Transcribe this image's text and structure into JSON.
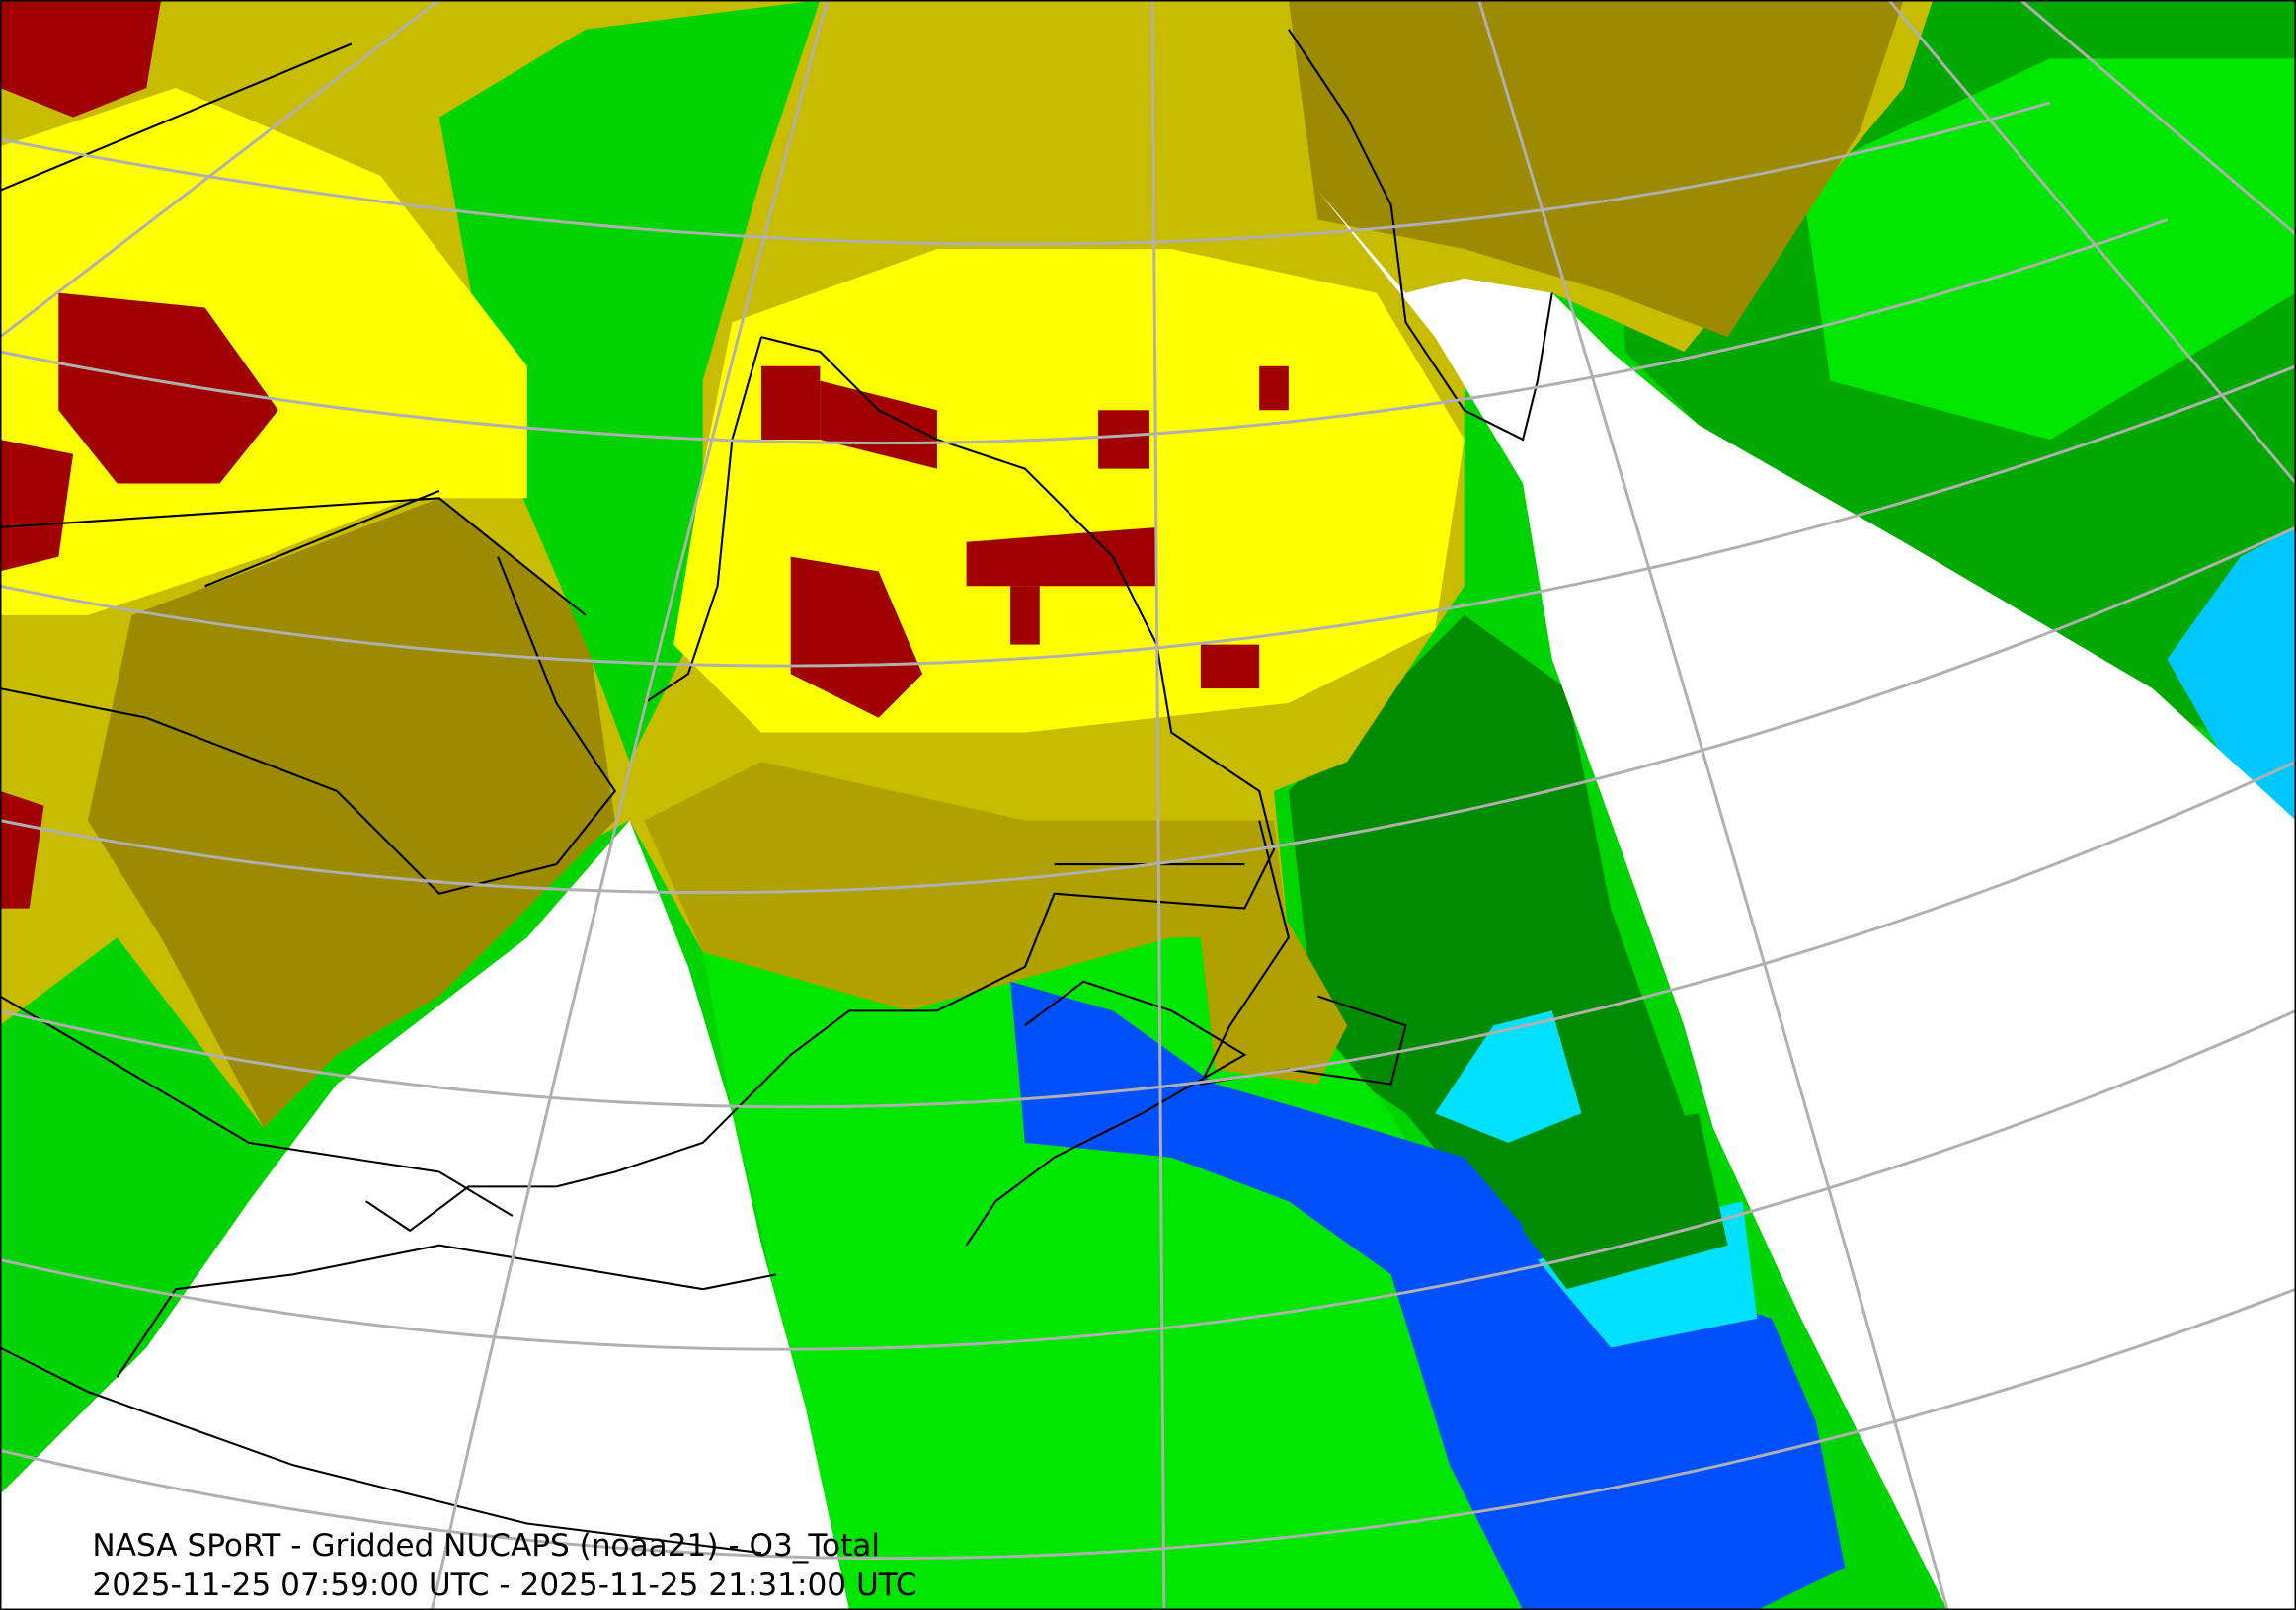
{
  "title": "NASA SPoRT - Gridded NUCAPS (noaa21) - O3_Total",
  "subtitle": "2025-11-25 07:59:00 UTC - 2025-11-25 21:31:00 UTC"
}
